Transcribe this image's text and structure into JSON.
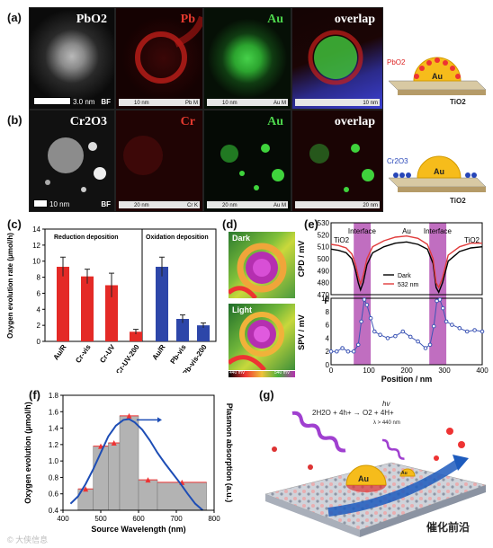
{
  "panel_a": {
    "label": "(a)",
    "tiles": [
      "PbO2",
      "Pb",
      "Au",
      "overlap"
    ],
    "scale_bf": "3.0 nm",
    "bf_tag": "BF",
    "scale_pb": "10 nm",
    "tag_pb": "Pb M",
    "scale_au": "10 nm",
    "tag_au": "Au M",
    "scale_ov": "10 nm",
    "schem_left": "PbO2",
    "schem_au": "Au",
    "schem_sub": "TiO2"
  },
  "panel_b": {
    "label": "(b)",
    "tiles": [
      "Cr2O3",
      "Cr",
      "Au",
      "overlap"
    ],
    "scale_bf": "10 nm",
    "bf_tag": "BF",
    "scale_cr": "20 nm",
    "tag_cr": "Cr K",
    "scale_au": "20 nm",
    "tag_au": "Au M",
    "scale_ov": "20 nm",
    "schem_left": "Cr2O3",
    "schem_au": "Au",
    "schem_sub": "TiO2"
  },
  "panel_c": {
    "label": "(c)"
  },
  "panel_d": {
    "label": "(d)",
    "dark": "Dark",
    "light": "Light",
    "cb_min": "440 mV",
    "cb_max": "540 mV"
  },
  "panel_e": {
    "label": "(e)",
    "f_label": "F",
    "interface1": "Interface",
    "interface2": "Interface",
    "au": "Au",
    "tio2_left": "TiO2",
    "tio2_right": "TiO2",
    "legend_dark": "Dark",
    "legend_532": "532 nm",
    "ylabel_top": "CPD / mV",
    "ylabel_bottom": "SPV / mV",
    "xlabel": "Position / nm"
  },
  "panel_f": {
    "label": "(f)",
    "ylabel_left": "Oxygen evolution (μmol/h)",
    "ylabel_right": "Plasmon absorption (a.u.)",
    "xlabel": "Source Wavelength (nm)"
  },
  "panel_g": {
    "label": "(g)",
    "equation": "2H2O + 4h+ → O2 + 4H+",
    "hv": "hv",
    "cond": "λ > 440 nm",
    "au": "Au",
    "au2": "Au",
    "tio2": "TiO2"
  },
  "footer": {
    "left_mark": "© 大侠信息",
    "right_mark": "催化前沿"
  },
  "chart_data": [
    {
      "type": "bar",
      "panel": "c-left",
      "title": "Reduction deposition",
      "ylabel": "Oxygen evolution rate (μmol/h)",
      "ylim": [
        0,
        14
      ],
      "yticks": [
        "0",
        "2",
        "4",
        "6",
        "8",
        "10",
        "12",
        "14"
      ],
      "categories": [
        "Au/R",
        "Cr-vis",
        "Cr-UV",
        "Cr-UV-200"
      ],
      "values": [
        9.3,
        8.1,
        7.0,
        1.2
      ],
      "errors": [
        1.2,
        0.9,
        1.5,
        0.3
      ],
      "color": "#e42a26"
    },
    {
      "type": "bar",
      "panel": "c-right",
      "title": "Oxidation deposition",
      "ylim": [
        0,
        14
      ],
      "categories": [
        "Au/R",
        "Pb-vis",
        "Pb-vis-200"
      ],
      "values": [
        9.3,
        2.8,
        2.0
      ],
      "errors": [
        1.2,
        0.5,
        0.3
      ],
      "color": "#2d46a9"
    },
    {
      "type": "line",
      "panel": "e-top",
      "ylabel": "CPD / mV",
      "xlabel": "Position / nm",
      "xlim": [
        0,
        400
      ],
      "ylim": [
        470,
        530
      ],
      "yticks": [
        "470",
        "475",
        "480",
        "485",
        "490",
        "495",
        "500",
        "505",
        "510",
        "515",
        "520",
        "525",
        "530"
      ],
      "xticks": [
        "0",
        "100",
        "200",
        "300",
        "400"
      ],
      "series": [
        {
          "name": "Dark",
          "color": "#000000",
          "x": [
            0,
            20,
            40,
            55,
            65,
            72,
            78,
            85,
            95,
            110,
            140,
            170,
            200,
            230,
            255,
            270,
            278,
            285,
            295,
            310,
            340,
            370,
            400
          ],
          "y": [
            508,
            507,
            505,
            500,
            490,
            480,
            474,
            480,
            495,
            505,
            510,
            513,
            514,
            512,
            508,
            496,
            476,
            472,
            480,
            498,
            506,
            509,
            510
          ]
        },
        {
          "name": "532 nm",
          "color": "#e03b3b",
          "x": [
            0,
            20,
            40,
            55,
            65,
            72,
            78,
            85,
            95,
            110,
            140,
            170,
            200,
            230,
            255,
            270,
            278,
            285,
            295,
            310,
            340,
            370,
            400
          ],
          "y": [
            512,
            511,
            509,
            504,
            495,
            485,
            479,
            486,
            500,
            510,
            515,
            518,
            519,
            517,
            512,
            500,
            480,
            476,
            484,
            503,
            510,
            513,
            513
          ]
        }
      ]
    },
    {
      "type": "scatter",
      "panel": "e-bottom",
      "ylabel": "SPV / mV",
      "xlabel": "Position / nm",
      "xlim": [
        0,
        400
      ],
      "ylim": [
        0,
        10
      ],
      "yticks": [
        "0",
        "2",
        "4",
        "6",
        "8",
        "10"
      ],
      "xticks": [
        "0",
        "100",
        "200",
        "300",
        "400"
      ],
      "series": [
        {
          "name": "SPV",
          "color": "#3c55b5",
          "x": [
            0,
            15,
            30,
            45,
            60,
            72,
            80,
            88,
            95,
            105,
            115,
            130,
            150,
            170,
            190,
            210,
            230,
            250,
            262,
            272,
            280,
            288,
            296,
            305,
            320,
            340,
            360,
            380,
            400
          ],
          "y": [
            2,
            2,
            2.5,
            2,
            2,
            3,
            6.5,
            9.8,
            9,
            7,
            5,
            4.5,
            4,
            4.3,
            5,
            4.2,
            3.5,
            2.5,
            3,
            5.8,
            9.6,
            9.8,
            8.5,
            6.5,
            6,
            5.5,
            5,
            5.2,
            5
          ]
        }
      ]
    },
    {
      "type": "bar",
      "panel": "f",
      "ylabel": "Oxygen evolution (μmol/h)",
      "y2label": "Plasmon absorption (a.u.)",
      "xlabel": "Source Wavelength (nm)",
      "xlim": [
        400,
        800
      ],
      "ylim": [
        0.4,
        1.8
      ],
      "yticks": [
        "0.4",
        "0.6",
        "0.8",
        "1.0",
        "1.2",
        "1.4",
        "1.6",
        "1.8"
      ],
      "xticks": [
        "400",
        "500",
        "600",
        "700",
        "800"
      ],
      "bins": [
        [
          440,
          480
        ],
        [
          480,
          520
        ],
        [
          520,
          550
        ],
        [
          550,
          600
        ],
        [
          600,
          650
        ],
        [
          650,
          780
        ]
      ],
      "values": [
        0.66,
        1.18,
        1.22,
        1.55,
        0.77,
        0.74
      ],
      "series": [
        {
          "name": "Plasmon absorption",
          "color": "#1d4db5",
          "x": [
            420,
            440,
            460,
            480,
            500,
            520,
            540,
            560,
            575,
            590,
            610,
            630,
            650,
            670,
            690,
            710,
            730,
            750,
            770
          ],
          "y": [
            0.48,
            0.57,
            0.72,
            0.9,
            1.1,
            1.3,
            1.43,
            1.5,
            1.51,
            1.47,
            1.38,
            1.25,
            1.1,
            0.97,
            0.85,
            0.73,
            0.6,
            0.48,
            0.4
          ]
        }
      ]
    }
  ]
}
